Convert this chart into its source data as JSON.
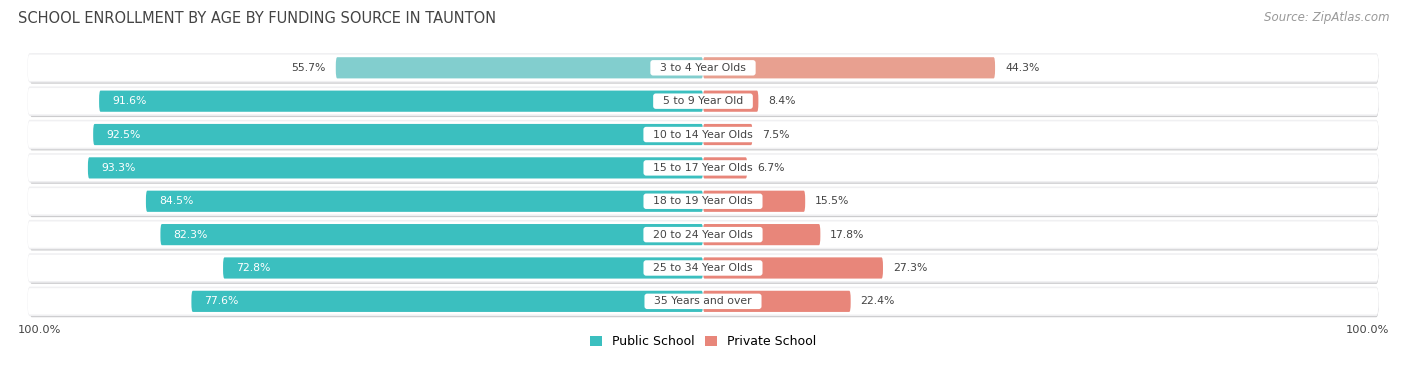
{
  "title": "SCHOOL ENROLLMENT BY AGE BY FUNDING SOURCE IN TAUNTON",
  "source": "Source: ZipAtlas.com",
  "categories": [
    "3 to 4 Year Olds",
    "5 to 9 Year Old",
    "10 to 14 Year Olds",
    "15 to 17 Year Olds",
    "18 to 19 Year Olds",
    "20 to 24 Year Olds",
    "25 to 34 Year Olds",
    "35 Years and over"
  ],
  "public_values": [
    55.7,
    91.6,
    92.5,
    93.3,
    84.5,
    82.3,
    72.8,
    77.6
  ],
  "private_values": [
    44.3,
    8.4,
    7.5,
    6.7,
    15.5,
    17.8,
    27.3,
    22.4
  ],
  "public_color_normal": "#3BBFBF",
  "public_color_light": "#82CECE",
  "private_color_normal": "#E8867A",
  "private_color_light": "#E8A090",
  "bg_color": "#FFFFFF",
  "row_bg": "#FFFFFF",
  "row_border": "#D8D8DC",
  "row_inner_bg": "#F0F0F2",
  "title_color": "#444444",
  "label_color": "#444444",
  "public_label": "Public School",
  "private_label": "Private School"
}
